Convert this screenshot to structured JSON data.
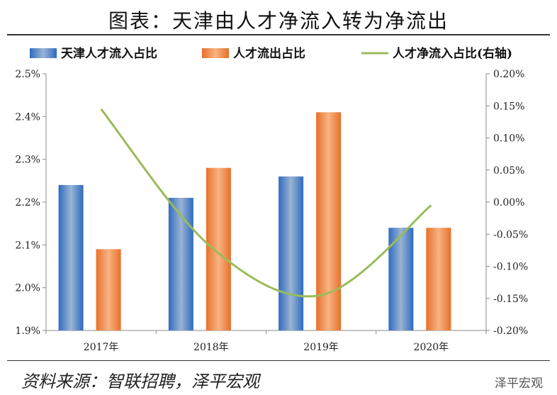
{
  "title": "图表：天津由人才净流入转为净流出",
  "source": "资料来源：智联招聘，泽平宏观",
  "watermark": "泽平宏观",
  "chart_data": {
    "type": "bar",
    "categories": [
      "2017年",
      "2018年",
      "2019年",
      "2020年"
    ],
    "series": [
      {
        "name": "天津人才流入占比",
        "axis": "left",
        "type": "bar",
        "color": "#3a70bf",
        "values": [
          2.24,
          2.21,
          2.26,
          2.14
        ]
      },
      {
        "name": "人才流出占比",
        "axis": "left",
        "type": "bar",
        "color": "#ee7b30",
        "values": [
          2.09,
          2.28,
          2.41,
          2.14
        ]
      },
      {
        "name": "人才净流入占比(右轴)",
        "axis": "right",
        "type": "line",
        "color": "#9bbb59",
        "values": [
          0.145,
          -0.07,
          -0.145,
          -0.005
        ]
      }
    ],
    "ylim_left": [
      1.9,
      2.5
    ],
    "yticks_left": [
      "1.9%",
      "2.0%",
      "2.1%",
      "2.2%",
      "2.3%",
      "2.4%",
      "2.5%"
    ],
    "ylim_right": [
      -0.2,
      0.2
    ],
    "yticks_right": [
      "-0.20%",
      "-0.15%",
      "-0.10%",
      "-0.05%",
      "0.00%",
      "0.05%",
      "0.10%",
      "0.15%",
      "0.20%"
    ],
    "legend": "top",
    "grid": false
  }
}
